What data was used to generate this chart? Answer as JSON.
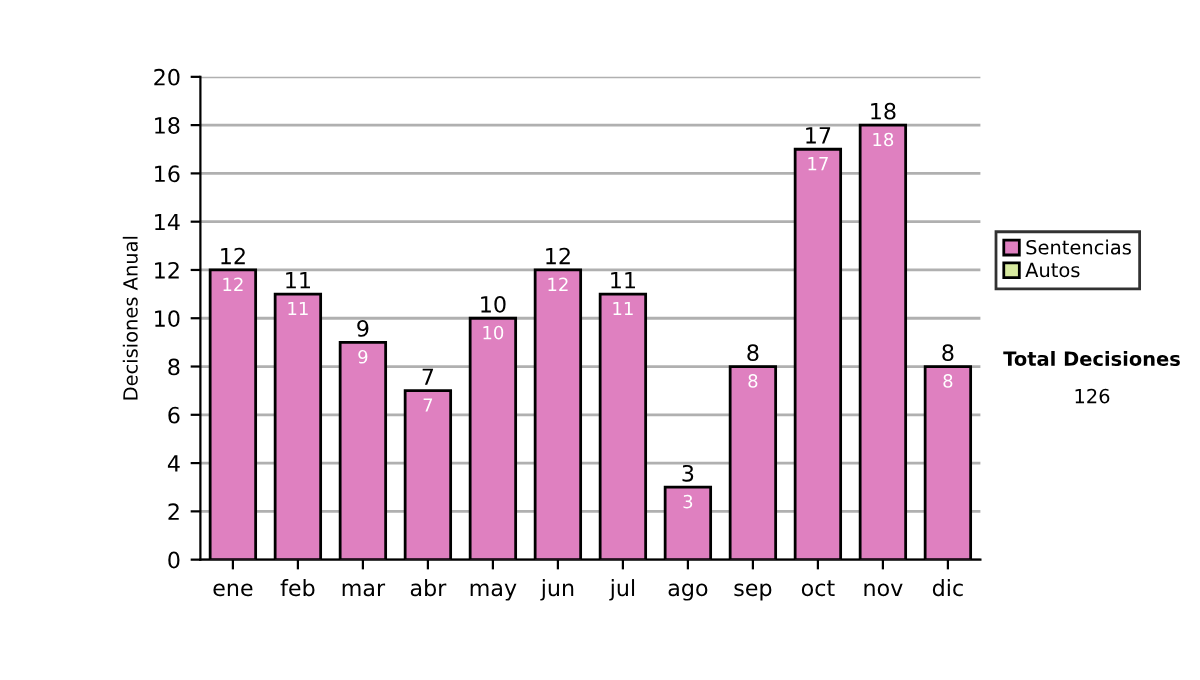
{
  "chart_data": {
    "type": "bar",
    "ylabel": "Decisiones Anual",
    "categories": [
      "ene",
      "feb",
      "mar",
      "abr",
      "may",
      "jun",
      "jul",
      "ago",
      "sep",
      "oct",
      "nov",
      "dic"
    ],
    "series": [
      {
        "name": "Sentencias",
        "color": "#df80c0",
        "values": [
          12,
          11,
          9,
          7,
          10,
          12,
          11,
          3,
          8,
          17,
          18,
          8
        ],
        "value_labels": [
          "12",
          "11",
          "9",
          "7",
          "10",
          "12",
          "11",
          "3",
          "8",
          "17",
          "18",
          "8"
        ]
      },
      {
        "name": "Autos",
        "color": "#d8eaa0",
        "values": [
          0,
          0,
          0,
          0,
          0,
          0,
          0,
          0,
          0,
          0,
          0,
          0
        ]
      }
    ],
    "stacked": true,
    "totals": [
      "12",
      "11",
      "9",
      "7",
      "10",
      "12",
      "11",
      "3",
      "8",
      "17",
      "18",
      "8"
    ],
    "ylim": [
      0,
      20
    ],
    "yticks": [
      0,
      2,
      4,
      6,
      8,
      10,
      12,
      14,
      16,
      18,
      20
    ],
    "grid": "y",
    "legend": "right",
    "annotations": [
      "Total Decisiones",
      "126"
    ]
  }
}
